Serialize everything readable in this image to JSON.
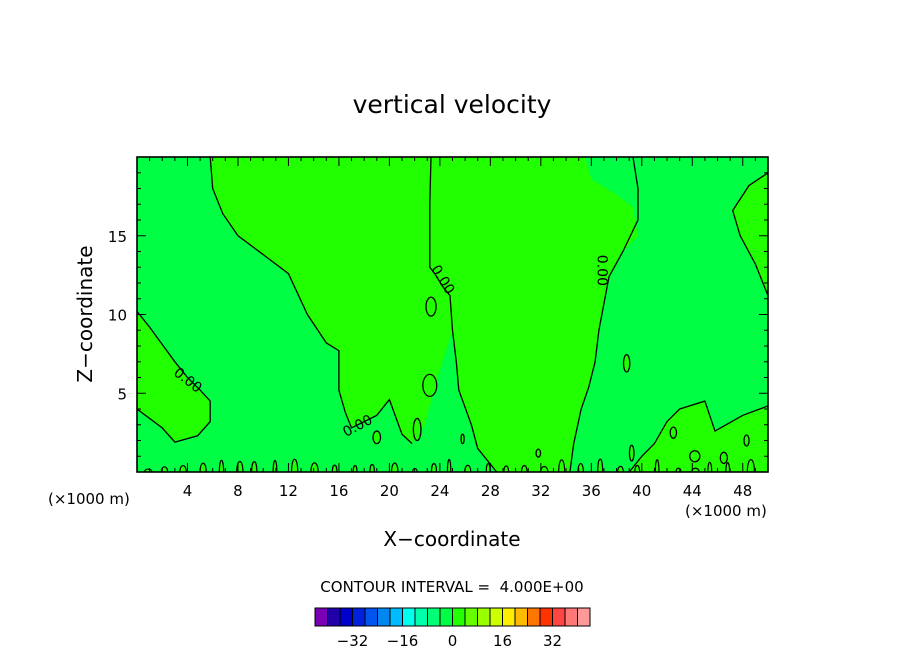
{
  "chart_data": {
    "type": "heatmap",
    "title": "vertical velocity",
    "xlabel": "X−coordinate",
    "ylabel": "Z−coordinate",
    "x_unit_left": "(×1000 m)",
    "x_unit_right": "(×1000 m)",
    "xlim": [
      0,
      50
    ],
    "ylim": [
      0,
      20
    ],
    "x_ticks": [
      4,
      8,
      12,
      16,
      20,
      24,
      28,
      32,
      36,
      40,
      44,
      48
    ],
    "y_ticks": [
      5,
      10,
      15
    ],
    "grid": false,
    "contour_interval_label": "CONTOUR INTERVAL =  4.000E+00",
    "contour_level": 0,
    "contour_level_label": "0.00",
    "colors": {
      "positive": "#22ff00",
      "negative": "#00ff44"
    },
    "regions": [
      {
        "sign": "positive",
        "points": [
          [
            0,
            10.2
          ],
          [
            1,
            9.2
          ],
          [
            2,
            8.1
          ],
          [
            3,
            7
          ],
          [
            4,
            6
          ],
          [
            5,
            5.2
          ],
          [
            5.8,
            4.5
          ],
          [
            5.8,
            3.2
          ],
          [
            4.8,
            2.3
          ],
          [
            3,
            1.9
          ],
          [
            2,
            2.8
          ],
          [
            0,
            4
          ]
        ]
      },
      {
        "sign": "positive",
        "points": [
          [
            5.8,
            20
          ],
          [
            6,
            18
          ],
          [
            6.8,
            16.4
          ],
          [
            8,
            15
          ],
          [
            10,
            13.8
          ],
          [
            12,
            12.6
          ],
          [
            13.5,
            10
          ],
          [
            15,
            8.2
          ],
          [
            16,
            7.7
          ],
          [
            16,
            5.2
          ],
          [
            16.5,
            3.8
          ],
          [
            17,
            2.8
          ],
          [
            19,
            3.6
          ],
          [
            20,
            4.6
          ],
          [
            21,
            2.4
          ],
          [
            21.8,
            1.8
          ],
          [
            22.8,
            3
          ],
          [
            23.8,
            6
          ],
          [
            25,
            9
          ],
          [
            26,
            11
          ],
          [
            26.2,
            14
          ],
          [
            26,
            17
          ],
          [
            26,
            20
          ]
        ]
      },
      {
        "sign": "positive",
        "points": [
          [
            35.5,
            20
          ],
          [
            36,
            18.6
          ],
          [
            38,
            17.6
          ],
          [
            39.3,
            16.8
          ],
          [
            39.7,
            15
          ],
          [
            38.5,
            14
          ],
          [
            37.4,
            12.4
          ],
          [
            36.6,
            9
          ],
          [
            36.3,
            7
          ],
          [
            35.8,
            5.4
          ],
          [
            35.2,
            4
          ],
          [
            34.3,
            0
          ],
          [
            28.5,
            0
          ],
          [
            27,
            1.5
          ],
          [
            26.5,
            3
          ],
          [
            25.5,
            5.2
          ],
          [
            25.3,
            7
          ],
          [
            25,
            9
          ],
          [
            26,
            11
          ],
          [
            26.2,
            14
          ],
          [
            26,
            17
          ],
          [
            26,
            20
          ]
        ]
      },
      {
        "sign": "positive",
        "points": [
          [
            50,
            19
          ],
          [
            48.5,
            18.2
          ],
          [
            47.2,
            16.6
          ],
          [
            47.8,
            15
          ],
          [
            49,
            13.2
          ],
          [
            50,
            11.2
          ]
        ]
      },
      {
        "sign": "positive",
        "points": [
          [
            50,
            4.2
          ],
          [
            48,
            3.6
          ],
          [
            45.8,
            2.6
          ],
          [
            45,
            4.5
          ],
          [
            43,
            4
          ],
          [
            42,
            3.2
          ],
          [
            41,
            1.8
          ],
          [
            40,
            1
          ],
          [
            39,
            0
          ],
          [
            50,
            0
          ]
        ]
      }
    ],
    "contour_lines": [
      {
        "points": [
          [
            0,
            10.2
          ],
          [
            1,
            9.2
          ],
          [
            2,
            8.1
          ],
          [
            3,
            7
          ],
          [
            4,
            6
          ],
          [
            5,
            5.2
          ],
          [
            5.8,
            4.5
          ],
          [
            5.8,
            3.2
          ],
          [
            4.8,
            2.3
          ],
          [
            3,
            1.9
          ],
          [
            2,
            2.8
          ],
          [
            0,
            4
          ]
        ]
      },
      {
        "points": [
          [
            5.8,
            20
          ],
          [
            6,
            18
          ],
          [
            6.8,
            16.4
          ],
          [
            8,
            15
          ],
          [
            10,
            13.8
          ],
          [
            12,
            12.6
          ],
          [
            13.5,
            10
          ],
          [
            15,
            8.2
          ],
          [
            16,
            7.7
          ],
          [
            16,
            5.2
          ],
          [
            16.5,
            3.8
          ],
          [
            17,
            2.8
          ],
          [
            19,
            3.6
          ],
          [
            20,
            4.6
          ],
          [
            21,
            2.4
          ],
          [
            21.8,
            1.8
          ]
        ]
      },
      {
        "points": [
          [
            23.3,
            20
          ],
          [
            23.2,
            17
          ],
          [
            23.2,
            13
          ],
          [
            23.6,
            12.6
          ],
          [
            24.2,
            11.8
          ],
          [
            24.8,
            11.2
          ],
          [
            25,
            9
          ],
          [
            25.3,
            7
          ],
          [
            25.5,
            5.2
          ],
          [
            26.5,
            3
          ],
          [
            27,
            1.5
          ],
          [
            28.5,
            0
          ]
        ]
      },
      {
        "points": [
          [
            39.3,
            20
          ],
          [
            39.7,
            18
          ],
          [
            39.7,
            16
          ],
          [
            38.5,
            14
          ],
          [
            37.4,
            12.4
          ],
          [
            36.6,
            9
          ],
          [
            36.3,
            7
          ],
          [
            35.8,
            5.4
          ],
          [
            35.2,
            4
          ],
          [
            34.6,
            1.8
          ],
          [
            34.3,
            0
          ]
        ]
      },
      {
        "points": [
          [
            50,
            19
          ],
          [
            48.5,
            18.2
          ],
          [
            47.2,
            16.6
          ],
          [
            47.8,
            15
          ],
          [
            49,
            13.2
          ],
          [
            50,
            11.2
          ]
        ]
      },
      {
        "points": [
          [
            50,
            4.2
          ],
          [
            48,
            3.6
          ],
          [
            45.8,
            2.6
          ],
          [
            45,
            4.5
          ],
          [
            43,
            4
          ],
          [
            42,
            3.2
          ],
          [
            41,
            1.8
          ],
          [
            40,
            1
          ],
          [
            39,
            0
          ]
        ]
      }
    ],
    "contour_loops": [
      {
        "cx": 23.3,
        "cy": 10.5,
        "rx": 0.4,
        "ry": 0.6
      },
      {
        "cx": 23.2,
        "cy": 5.5,
        "rx": 0.55,
        "ry": 0.7
      },
      {
        "cx": 38.8,
        "cy": 6.9,
        "rx": 0.25,
        "ry": 0.55
      },
      {
        "cx": 19,
        "cy": 2.2,
        "rx": 0.3,
        "ry": 0.4
      },
      {
        "cx": 22.2,
        "cy": 2.7,
        "rx": 0.3,
        "ry": 0.7
      },
      {
        "cx": 25.8,
        "cy": 2.1,
        "rx": 0.12,
        "ry": 0.3
      },
      {
        "cx": 44.2,
        "cy": 1,
        "rx": 0.4,
        "ry": 0.35
      },
      {
        "cx": 48.3,
        "cy": 2,
        "rx": 0.2,
        "ry": 0.35
      },
      {
        "cx": 39.2,
        "cy": 1.2,
        "rx": 0.18,
        "ry": 0.5
      },
      {
        "cx": 42.5,
        "cy": 2.5,
        "rx": 0.25,
        "ry": 0.35
      },
      {
        "cx": 31.8,
        "cy": 1.2,
        "rx": 0.18,
        "ry": 0.25
      },
      {
        "cx": 46.5,
        "cy": 0.9,
        "rx": 0.28,
        "ry": 0.35
      }
    ],
    "contour_labels": [
      {
        "x": 4,
        "y": 5.8,
        "text": "0.00",
        "angle": 38
      },
      {
        "x": 24.2,
        "y": 12.2,
        "text": "0.00",
        "angle": 58
      },
      {
        "x": 36.8,
        "y": 12.8,
        "text": "0.00",
        "angle": 90
      },
      {
        "x": 17.5,
        "y": 2.9,
        "text": "0.00",
        "angle": -28
      }
    ],
    "colorbar": {
      "colors": [
        "#7a00b5",
        "#2200a8",
        "#0000cc",
        "#0022dd",
        "#0055ee",
        "#0088ee",
        "#00bbff",
        "#00ffee",
        "#00ffaa",
        "#00ff77",
        "#00ff44",
        "#22ff00",
        "#66ff00",
        "#99ff00",
        "#ccff00",
        "#ffee00",
        "#ffbb00",
        "#ff7700",
        "#ff3300",
        "#ff4444",
        "#ff7777",
        "#ff9999"
      ],
      "ticks": [
        "−32",
        "−16",
        "0",
        "16",
        "32"
      ]
    }
  }
}
